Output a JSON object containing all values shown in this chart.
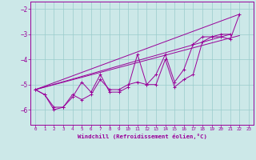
{
  "x": [
    0,
    1,
    2,
    3,
    4,
    5,
    6,
    7,
    8,
    9,
    10,
    11,
    12,
    13,
    14,
    15,
    16,
    17,
    18,
    19,
    20,
    21,
    22,
    23
  ],
  "line1": [
    -5.2,
    -5.4,
    -6.0,
    -5.9,
    -5.5,
    -4.9,
    -5.3,
    -4.6,
    -5.3,
    -5.3,
    -5.1,
    -3.8,
    -5.0,
    -5.0,
    -4.0,
    -5.1,
    -4.8,
    -4.6,
    -3.3,
    -3.1,
    -3.1,
    -3.2,
    -2.2,
    null
  ],
  "line2": [
    -5.2,
    -5.4,
    -5.9,
    -5.9,
    -5.4,
    -5.6,
    -5.4,
    -4.8,
    -5.2,
    -5.2,
    -5.0,
    -4.9,
    -5.0,
    -4.6,
    -3.8,
    -4.9,
    -4.4,
    -3.4,
    -3.1,
    -3.1,
    -3.0,
    -3.0,
    null,
    null
  ],
  "line3_x": [
    0,
    22
  ],
  "line3_y": [
    -5.2,
    -2.2
  ],
  "line4_x": [
    0,
    21
  ],
  "line4_y": [
    -5.2,
    -3.0
  ],
  "line5_x": [
    0,
    22
  ],
  "line5_y": [
    -5.2,
    -3.05
  ],
  "line_color": "#990099",
  "bg_color": "#cce8e8",
  "grid_color": "#99cccc",
  "xlabel": "Windchill (Refroidissement éolien,°C)",
  "ylim": [
    -6.6,
    -1.7
  ],
  "xlim": [
    -0.5,
    23.5
  ],
  "yticks": [
    -6,
    -5,
    -4,
    -3,
    -2
  ],
  "xticks": [
    0,
    1,
    2,
    3,
    4,
    5,
    6,
    7,
    8,
    9,
    10,
    11,
    12,
    13,
    14,
    15,
    16,
    17,
    18,
    19,
    20,
    21,
    22,
    23
  ]
}
